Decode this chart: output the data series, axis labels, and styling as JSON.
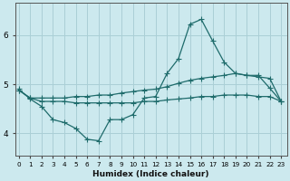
{
  "title": "",
  "xlabel": "Humidex (Indice chaleur)",
  "ylabel": "",
  "bg_color": "#cce9ee",
  "grid_color": "#aacfd6",
  "line_color": "#1e6b6b",
  "x_ticks": [
    0,
    1,
    2,
    3,
    4,
    5,
    6,
    7,
    8,
    9,
    10,
    11,
    12,
    13,
    14,
    15,
    16,
    17,
    18,
    19,
    20,
    21,
    22,
    23
  ],
  "y_ticks": [
    4,
    5,
    6
  ],
  "xlim": [
    -0.3,
    23.5
  ],
  "ylim": [
    3.55,
    6.65
  ],
  "line1_x": [
    0,
    1,
    2,
    3,
    4,
    5,
    6,
    7,
    8,
    9,
    10,
    11,
    12,
    13,
    14,
    15,
    16,
    17,
    18,
    19,
    20,
    21,
    22,
    23
  ],
  "line1_y": [
    4.9,
    4.7,
    4.55,
    4.28,
    4.22,
    4.1,
    3.88,
    3.85,
    4.28,
    4.28,
    4.38,
    4.72,
    4.75,
    5.22,
    5.52,
    6.22,
    6.32,
    5.88,
    5.45,
    5.22,
    5.18,
    5.18,
    4.92,
    4.65
  ],
  "line2_x": [
    0,
    1,
    2,
    3,
    4,
    5,
    6,
    7,
    8,
    9,
    10,
    11,
    12,
    13,
    14,
    15,
    16,
    17,
    18,
    19,
    20,
    21,
    22,
    23
  ],
  "line2_y": [
    4.88,
    4.72,
    4.72,
    4.72,
    4.72,
    4.75,
    4.75,
    4.78,
    4.78,
    4.82,
    4.85,
    4.88,
    4.9,
    4.95,
    5.02,
    5.08,
    5.12,
    5.15,
    5.18,
    5.22,
    5.18,
    5.15,
    5.12,
    4.65
  ],
  "line3_x": [
    0,
    1,
    2,
    3,
    4,
    5,
    6,
    7,
    8,
    9,
    10,
    11,
    12,
    13,
    14,
    15,
    16,
    17,
    18,
    19,
    20,
    21,
    22,
    23
  ],
  "line3_y": [
    4.88,
    4.72,
    4.65,
    4.65,
    4.65,
    4.62,
    4.62,
    4.62,
    4.62,
    4.62,
    4.62,
    4.65,
    4.65,
    4.68,
    4.7,
    4.72,
    4.75,
    4.75,
    4.78,
    4.78,
    4.78,
    4.75,
    4.75,
    4.65
  ]
}
